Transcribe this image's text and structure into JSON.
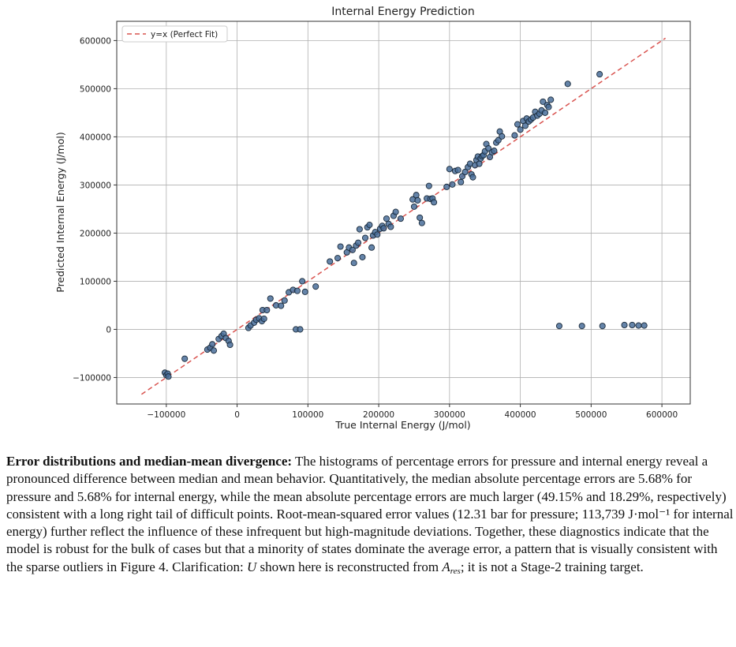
{
  "chart_data": {
    "type": "scatter",
    "title": "Internal Energy Prediction",
    "xlabel": "True Internal Energy (J/mol)",
    "ylabel": "Predicted Internal Energy (J/mol)",
    "xlim": [
      -170000,
      640000
    ],
    "ylim": [
      -155000,
      640000
    ],
    "x_ticks": [
      -100000,
      0,
      100000,
      200000,
      300000,
      400000,
      500000,
      600000
    ],
    "x_tick_labels": [
      "−100000",
      "0",
      "100000",
      "200000",
      "300000",
      "400000",
      "500000",
      "600000"
    ],
    "y_ticks": [
      -100000,
      0,
      100000,
      200000,
      300000,
      400000,
      500000,
      600000
    ],
    "y_tick_labels": [
      "−100000",
      "0",
      "100000",
      "200000",
      "300000",
      "400000",
      "500000",
      "600000"
    ],
    "grid": true,
    "legend": {
      "position": "top-left",
      "entries": [
        "y=x (Perfect Fit)"
      ]
    },
    "reference_line": {
      "name": "y=x (Perfect Fit)",
      "x": [
        -135000,
        605000
      ],
      "y": [
        -135000,
        605000
      ],
      "style": "dashed",
      "color": "#d9534f"
    },
    "marker_color": "#4a6f9a",
    "marker_edge": "#1a2a3a",
    "points": [
      [
        -102000,
        -90000
      ],
      [
        -100000,
        -95000
      ],
      [
        -98000,
        -92000
      ],
      [
        -97000,
        -98000
      ],
      [
        -74000,
        -61000
      ],
      [
        -42000,
        -42000
      ],
      [
        -38000,
        -38000
      ],
      [
        -35000,
        -31000
      ],
      [
        -33000,
        -44000
      ],
      [
        -26000,
        -20000
      ],
      [
        -22000,
        -14000
      ],
      [
        -19000,
        -9000
      ],
      [
        -16000,
        -18000
      ],
      [
        -12000,
        -24000
      ],
      [
        -10000,
        -32000
      ],
      [
        16000,
        3000
      ],
      [
        19000,
        8000
      ],
      [
        24000,
        14000
      ],
      [
        27000,
        20000
      ],
      [
        31000,
        23000
      ],
      [
        35000,
        17000
      ],
      [
        36000,
        40000
      ],
      [
        38000,
        22000
      ],
      [
        42000,
        40000
      ],
      [
        47000,
        64000
      ],
      [
        55000,
        50000
      ],
      [
        62000,
        49000
      ],
      [
        67000,
        60000
      ],
      [
        73000,
        77000
      ],
      [
        79000,
        82000
      ],
      [
        83000,
        0
      ],
      [
        85000,
        80000
      ],
      [
        89000,
        0
      ],
      [
        92000,
        100000
      ],
      [
        96000,
        78000
      ],
      [
        111000,
        89000
      ],
      [
        131000,
        141000
      ],
      [
        142000,
        148000
      ],
      [
        146000,
        172000
      ],
      [
        155000,
        160000
      ],
      [
        158000,
        170000
      ],
      [
        163000,
        165000
      ],
      [
        165000,
        138000
      ],
      [
        168000,
        174000
      ],
      [
        171000,
        180000
      ],
      [
        173000,
        208000
      ],
      [
        177000,
        150000
      ],
      [
        181000,
        190000
      ],
      [
        184000,
        212000
      ],
      [
        187000,
        217000
      ],
      [
        190000,
        170000
      ],
      [
        192000,
        195000
      ],
      [
        195000,
        202000
      ],
      [
        198000,
        197000
      ],
      [
        202000,
        209000
      ],
      [
        205000,
        215000
      ],
      [
        207000,
        210000
      ],
      [
        211000,
        230000
      ],
      [
        214000,
        219000
      ],
      [
        217000,
        213000
      ],
      [
        221000,
        236000
      ],
      [
        224000,
        244000
      ],
      [
        231000,
        230000
      ],
      [
        248000,
        270000
      ],
      [
        250000,
        255000
      ],
      [
        253000,
        279000
      ],
      [
        255000,
        268000
      ],
      [
        258000,
        232000
      ],
      [
        261000,
        221000
      ],
      [
        268000,
        272000
      ],
      [
        271000,
        298000
      ],
      [
        273000,
        271000
      ],
      [
        276000,
        272000
      ],
      [
        278000,
        264000
      ],
      [
        296000,
        296000
      ],
      [
        300000,
        333000
      ],
      [
        304000,
        301000
      ],
      [
        308000,
        329000
      ],
      [
        312000,
        331000
      ],
      [
        316000,
        306000
      ],
      [
        318000,
        318000
      ],
      [
        322000,
        327000
      ],
      [
        326000,
        337000
      ],
      [
        329000,
        344000
      ],
      [
        331000,
        322000
      ],
      [
        333000,
        316000
      ],
      [
        336000,
        341000
      ],
      [
        338000,
        352000
      ],
      [
        340000,
        359000
      ],
      [
        342000,
        344000
      ],
      [
        344000,
        355000
      ],
      [
        346000,
        360000
      ],
      [
        348000,
        362000
      ],
      [
        350000,
        370000
      ],
      [
        352000,
        385000
      ],
      [
        355000,
        376000
      ],
      [
        357000,
        358000
      ],
      [
        360000,
        368000
      ],
      [
        363000,
        371000
      ],
      [
        366000,
        388000
      ],
      [
        369000,
        393000
      ],
      [
        371000,
        411000
      ],
      [
        374000,
        401000
      ],
      [
        392000,
        403000
      ],
      [
        396000,
        426000
      ],
      [
        400000,
        415000
      ],
      [
        404000,
        433000
      ],
      [
        407000,
        423000
      ],
      [
        409000,
        438000
      ],
      [
        412000,
        432000
      ],
      [
        415000,
        436000
      ],
      [
        418000,
        440000
      ],
      [
        421000,
        452000
      ],
      [
        424000,
        444000
      ],
      [
        427000,
        448000
      ],
      [
        430000,
        455000
      ],
      [
        432000,
        473000
      ],
      [
        435000,
        450000
      ],
      [
        438000,
        466000
      ],
      [
        440000,
        462000
      ],
      [
        443000,
        477000
      ],
      [
        467000,
        510000
      ],
      [
        512000,
        530000
      ],
      [
        455000,
        7000
      ],
      [
        487000,
        7000
      ],
      [
        516000,
        7000
      ],
      [
        547000,
        9000
      ],
      [
        558000,
        9000
      ],
      [
        567000,
        8000
      ],
      [
        575000,
        8000
      ]
    ]
  },
  "caption": {
    "heading": "Error distributions and median-mean divergence:",
    "body": "The histograms of percentage errors for pressure and internal energy reveal a pronounced difference between median and mean behavior. Quantitatively, the median absolute percentage errors are 5.68% for pressure and 5.68% for internal energy, while the mean absolute percentage errors are much larger (49.15% and 18.29%, respectively) consistent with a long right tail of difficult points. Root-mean-squared error values (12.31 bar for pressure; 113,739 J·mol⁻¹ for internal energy) further reflect the influence of these infrequent but high-magnitude deviations. Together, these diagnostics indicate that the model is robust for the bulk of cases but that a minority of states dominate the average error, a pattern that is visually consistent with the sparse outliers in Figure 4. Clarification:",
    "math_u": "U",
    "mid": "shown here is reconstructed from",
    "math_a": "A",
    "math_a_sub": "res",
    "tail": "; it is not a Stage-2 training target."
  }
}
